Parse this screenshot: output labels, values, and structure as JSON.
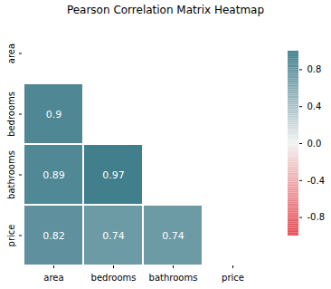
{
  "chart_data": {
    "type": "heatmap",
    "title": "Pearson Correlation Matrix Heatmap",
    "x": [
      "area",
      "bedrooms",
      "bathrooms",
      "price"
    ],
    "y": [
      "area",
      "bedrooms",
      "bathrooms",
      "price"
    ],
    "values": [
      [
        null,
        null,
        null,
        null
      ],
      [
        0.9,
        null,
        null,
        null
      ],
      [
        0.89,
        0.97,
        null,
        null
      ],
      [
        0.82,
        0.74,
        0.74,
        null
      ]
    ],
    "data_labels": true,
    "colorbar": {
      "range": [
        -1,
        1
      ],
      "ticks": [
        -0.8,
        -0.4,
        {
          "value": 0,
          "label": "0.0"
        },
        0.4,
        0.8
      ],
      "colors": [
        "#e8474f",
        "#f2f2f2",
        "#3d7b8a"
      ]
    }
  }
}
